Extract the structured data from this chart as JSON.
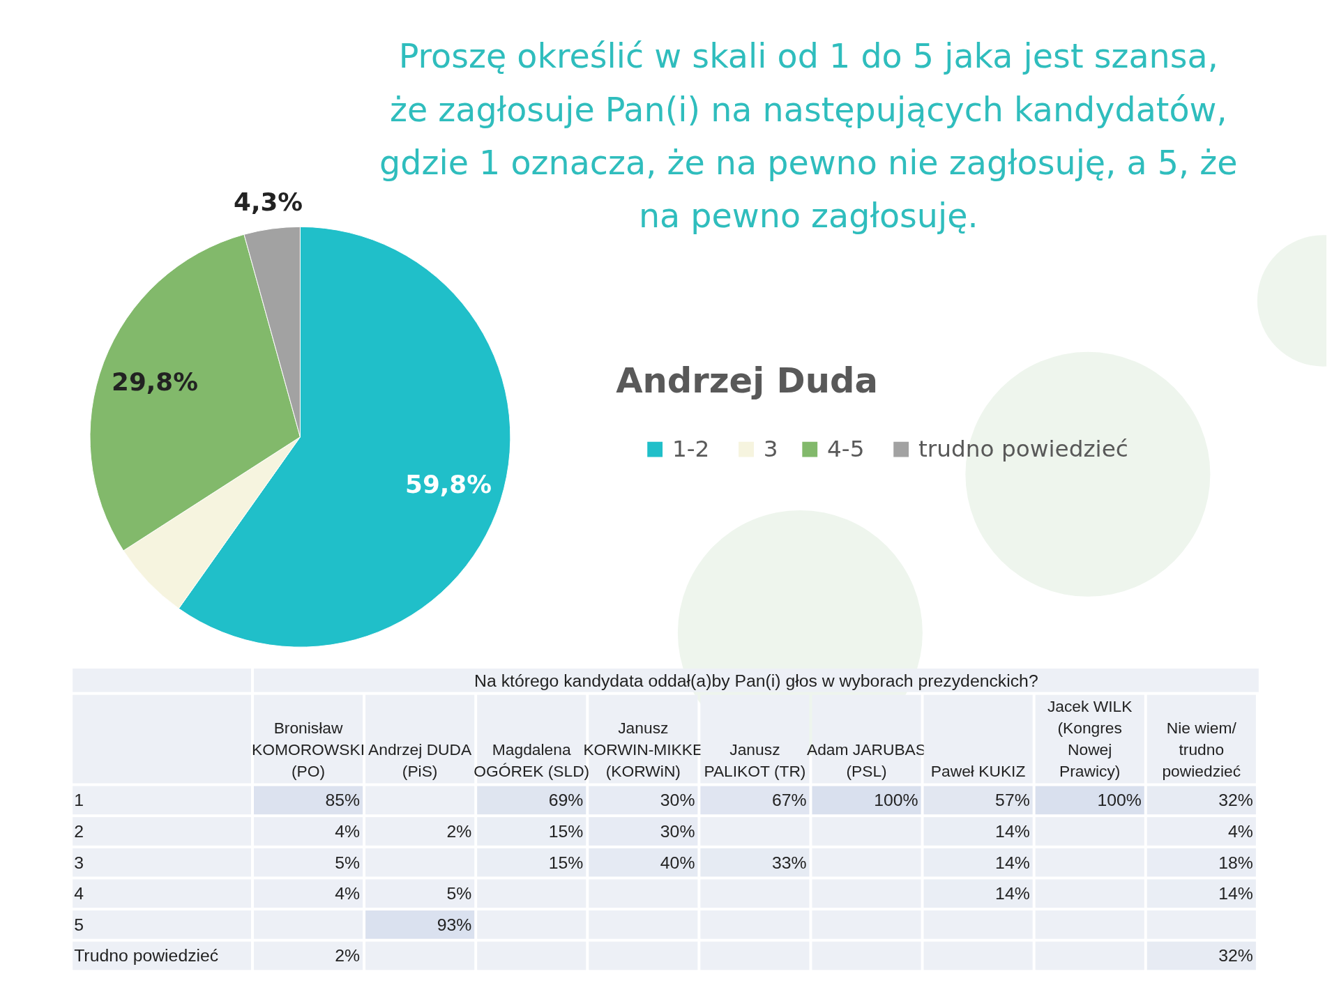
{
  "chart_data": [
    {
      "type": "pie",
      "title": "Proszę określić w skali od 1 do 5 jaka jest szansa, że zagłosuje Pan(i) na następujących kandydatów, gdzie 1 oznacza, że na pewno nie zagłosuję, a 5, że na pewno zagłosuję.",
      "subtitle": "Andrzej Duda",
      "categories": [
        "1-2",
        "3",
        "4-5",
        "trudno powiedzieć"
      ],
      "values": [
        59.8,
        6.1,
        29.8,
        4.3
      ],
      "colors": [
        "#20bfc9",
        "#f6f4df",
        "#82b96b",
        "#a2a2a2"
      ],
      "value_labels": [
        "59,8%",
        null,
        "29,8%",
        "4,3%"
      ],
      "legend": "right"
    },
    {
      "type": "heatmap",
      "title": "Na którego kandydata oddał(a)by Pan(i) głos w wyborach prezydenckich?",
      "categories": [
        "Bronisław KOMOROWSKI (PO)",
        "Andrzej DUDA (PiS)",
        "Magdalena OGÓREK (SLD)",
        "Janusz KORWIN-MIKKE (KORWiN)",
        "Janusz PALIKOT (TR)",
        "Adam JARUBAS (PSL)",
        "Paweł KUKIZ",
        "Jacek WILK (Kongres Nowej Prawicy)",
        "Nie wiem/ trudno powiedzieć"
      ],
      "y_categories": [
        "1",
        "2",
        "3",
        "4",
        "5",
        "Trudno powiedzieć"
      ],
      "cells": [
        [
          85,
          null,
          69,
          30,
          67,
          100,
          57,
          100,
          32
        ],
        [
          4,
          2,
          15,
          30,
          null,
          null,
          14,
          null,
          4
        ],
        [
          5,
          null,
          15,
          40,
          33,
          null,
          14,
          null,
          18
        ],
        [
          4,
          5,
          null,
          null,
          null,
          null,
          14,
          null,
          14
        ],
        [
          null,
          93,
          null,
          null,
          null,
          null,
          null,
          null,
          null
        ],
        [
          2,
          null,
          null,
          null,
          null,
          null,
          null,
          null,
          32
        ]
      ],
      "cell_labels": [
        [
          "85%",
          null,
          "69%",
          "30%",
          "67%",
          "100%",
          "57%",
          "100%",
          "32%"
        ],
        [
          "4%",
          "2%",
          "15%",
          "30%",
          null,
          null,
          "14%",
          null,
          "4%"
        ],
        [
          "5%",
          null,
          "15%",
          "40%",
          "33%",
          null,
          "14%",
          null,
          "18%"
        ],
        [
          "4%",
          "5%",
          null,
          null,
          null,
          null,
          "14%",
          null,
          "14%"
        ],
        [
          null,
          "93%",
          null,
          null,
          null,
          null,
          null,
          null,
          null
        ],
        [
          "2%",
          null,
          null,
          null,
          null,
          null,
          null,
          null,
          "32%"
        ]
      ],
      "color": "#edf0f6"
    }
  ]
}
